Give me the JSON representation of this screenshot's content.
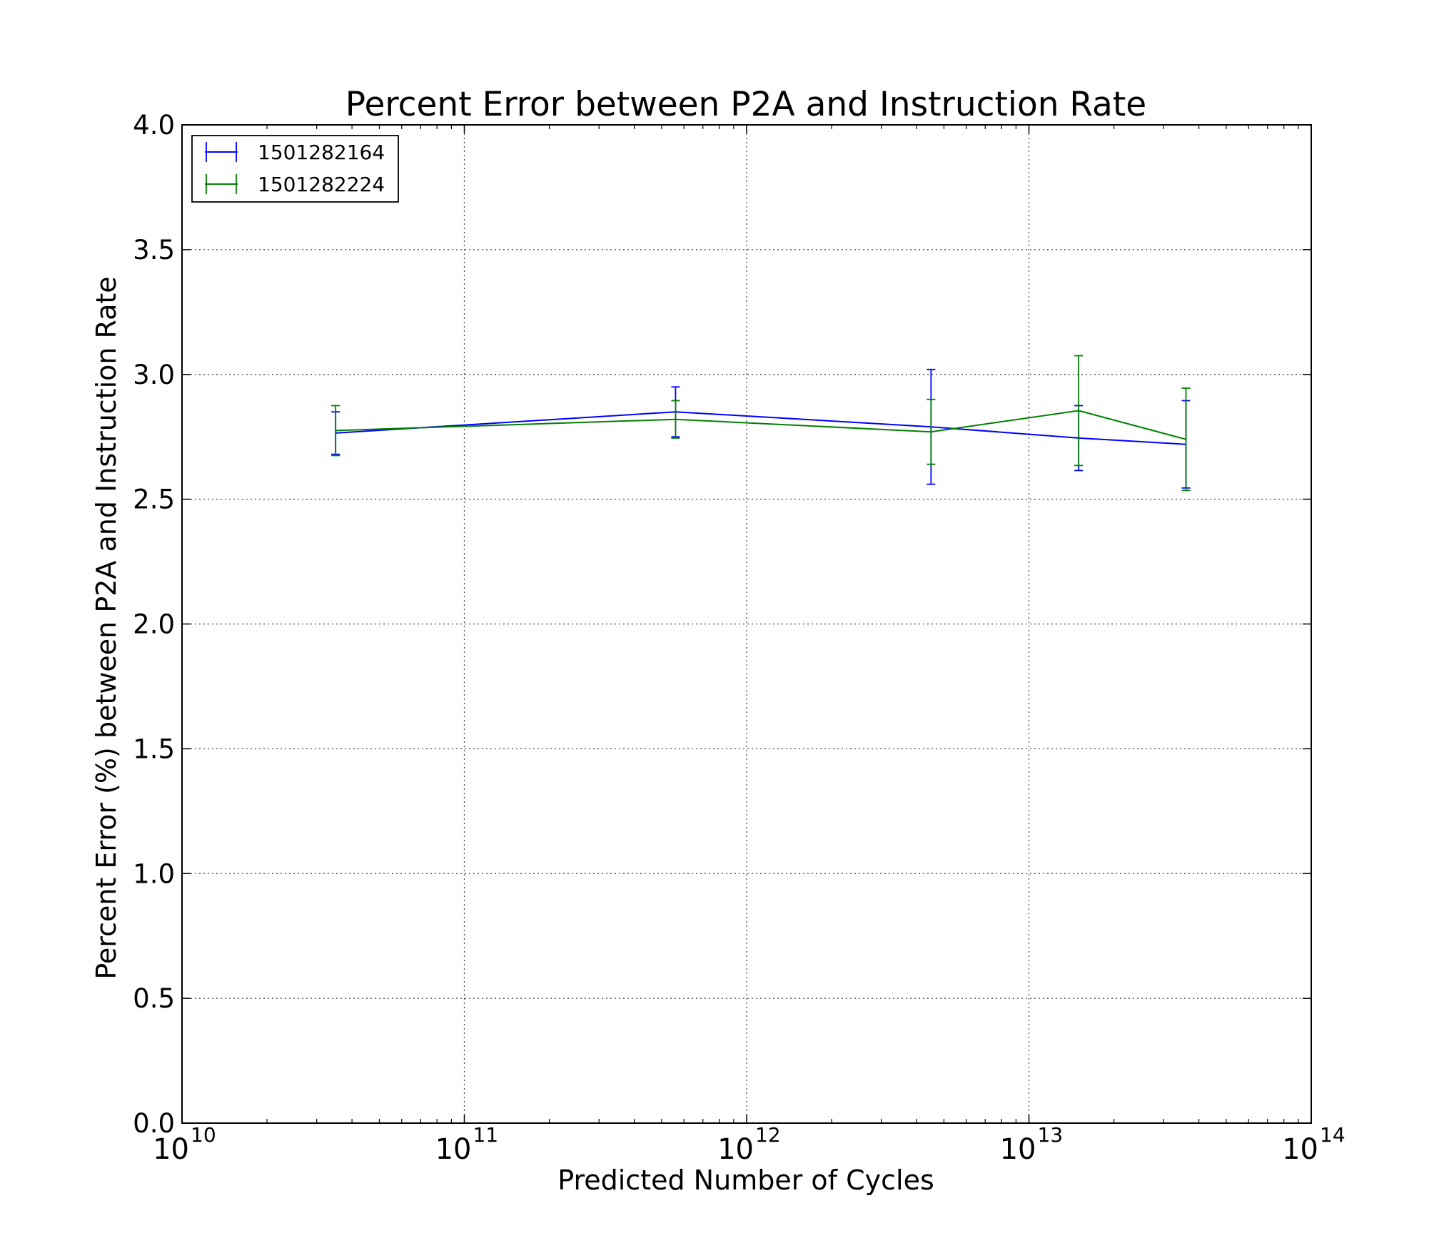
{
  "chart_data": {
    "type": "line",
    "title": "Percent Error between P2A and Instruction Rate",
    "xlabel": "Predicted Number of Cycles",
    "ylabel": "Percent Error (%) between P2A and Instruction Rate",
    "xscale": "log",
    "xlim": [
      10000000000,
      100000000000000
    ],
    "ylim": [
      0.0,
      4.0
    ],
    "xticks": [
      {
        "value": 10000000000,
        "base": "10",
        "exp": "10"
      },
      {
        "value": 100000000000,
        "base": "10",
        "exp": "11"
      },
      {
        "value": 1000000000000,
        "base": "10",
        "exp": "12"
      },
      {
        "value": 10000000000000,
        "base": "10",
        "exp": "13"
      },
      {
        "value": 100000000000000,
        "base": "10",
        "exp": "14"
      }
    ],
    "yticks": [
      {
        "value": 0.0,
        "label": "0.0"
      },
      {
        "value": 0.5,
        "label": "0.5"
      },
      {
        "value": 1.0,
        "label": "1.0"
      },
      {
        "value": 1.5,
        "label": "1.5"
      },
      {
        "value": 2.0,
        "label": "2.0"
      },
      {
        "value": 2.5,
        "label": "2.5"
      },
      {
        "value": 3.0,
        "label": "3.0"
      },
      {
        "value": 3.5,
        "label": "3.5"
      },
      {
        "value": 4.0,
        "label": "4.0"
      }
    ],
    "grid": true,
    "legend_position": "top-left",
    "series": [
      {
        "name": "1501282164",
        "color": "#0000ff",
        "points": [
          {
            "x": 35000000000,
            "y": 2.765,
            "err": 0.085
          },
          {
            "x": 560000000000,
            "y": 2.85,
            "err": 0.1
          },
          {
            "x": 4500000000000,
            "y": 2.79,
            "err": 0.23
          },
          {
            "x": 15000000000000,
            "y": 2.745,
            "err": 0.13
          },
          {
            "x": 36000000000000,
            "y": 2.72,
            "err": 0.175
          }
        ]
      },
      {
        "name": "1501282224",
        "color": "#008000",
        "points": [
          {
            "x": 35000000000,
            "y": 2.775,
            "err": 0.1
          },
          {
            "x": 560000000000,
            "y": 2.82,
            "err": 0.075
          },
          {
            "x": 4500000000000,
            "y": 2.77,
            "err": 0.13
          },
          {
            "x": 15000000000000,
            "y": 2.855,
            "err": 0.22
          },
          {
            "x": 36000000000000,
            "y": 2.74,
            "err": 0.205
          }
        ]
      }
    ]
  }
}
